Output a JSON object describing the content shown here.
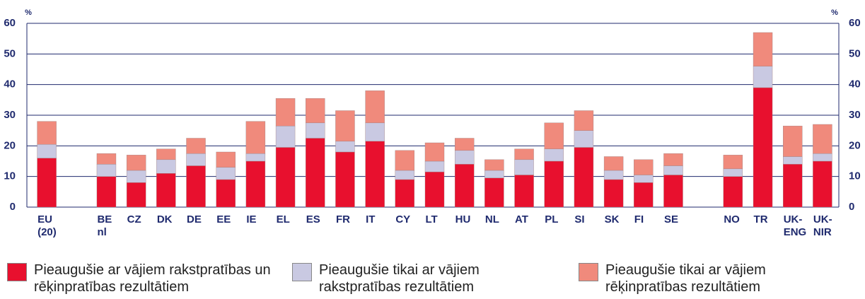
{
  "chart_data": {
    "type": "stacked_bar",
    "y_label": "%",
    "categories": [
      [
        "EU",
        "(20)"
      ],
      null,
      [
        "BE",
        "nl"
      ],
      [
        "CZ"
      ],
      [
        "DK"
      ],
      [
        "DE"
      ],
      [
        "EE"
      ],
      [
        "IE"
      ],
      [
        "EL"
      ],
      [
        "ES"
      ],
      [
        "FR"
      ],
      [
        "IT"
      ],
      [
        "CY"
      ],
      [
        "LT"
      ],
      [
        "HU"
      ],
      [
        "NL"
      ],
      [
        "AT"
      ],
      [
        "PL"
      ],
      [
        "SI"
      ],
      [
        "SK"
      ],
      [
        "FI"
      ],
      [
        "SE"
      ],
      null,
      [
        "NO"
      ],
      [
        "TR"
      ],
      [
        "UK-",
        "ENG"
      ],
      [
        "UK-",
        "NIR"
      ]
    ],
    "series": [
      {
        "name": "Pieaugušie ar vājiem rakstpratības un rēķinpratības rezultātiem",
        "color": "#e8102e",
        "values": [
          16,
          null,
          10,
          8,
          11,
          13.5,
          9,
          15,
          19.5,
          22.5,
          18,
          21.5,
          9,
          11.5,
          14,
          9.5,
          10.5,
          15,
          19.5,
          9,
          8,
          10.5,
          null,
          10,
          39,
          14,
          15
        ]
      },
      {
        "name": "Pieaugušie tikai ar vājiem rakstpratības rezultātiem",
        "color": "#c9c9e2",
        "values": [
          4.5,
          null,
          4,
          4,
          4.5,
          4,
          4,
          2.5,
          7,
          5,
          3.5,
          6,
          3,
          3.5,
          4.5,
          2.5,
          5,
          4,
          5.5,
          3,
          2.5,
          3,
          null,
          2.5,
          7,
          2.5,
          2.5
        ]
      },
      {
        "name": "Pieaugušie tikai ar vājiem rēķinpratības rezultātiem",
        "color": "#f08a7c",
        "values": [
          7.5,
          null,
          3.5,
          5,
          3.5,
          5,
          5,
          10.5,
          9,
          8,
          10,
          10.5,
          6.5,
          6,
          4,
          3.5,
          3.5,
          8.5,
          6.5,
          4.5,
          5,
          4,
          null,
          4.5,
          11,
          10,
          9.5
        ]
      }
    ],
    "ylim": [
      0,
      60
    ],
    "yticks": [
      0,
      10,
      20,
      30,
      40,
      50,
      60
    ],
    "grid": true
  }
}
